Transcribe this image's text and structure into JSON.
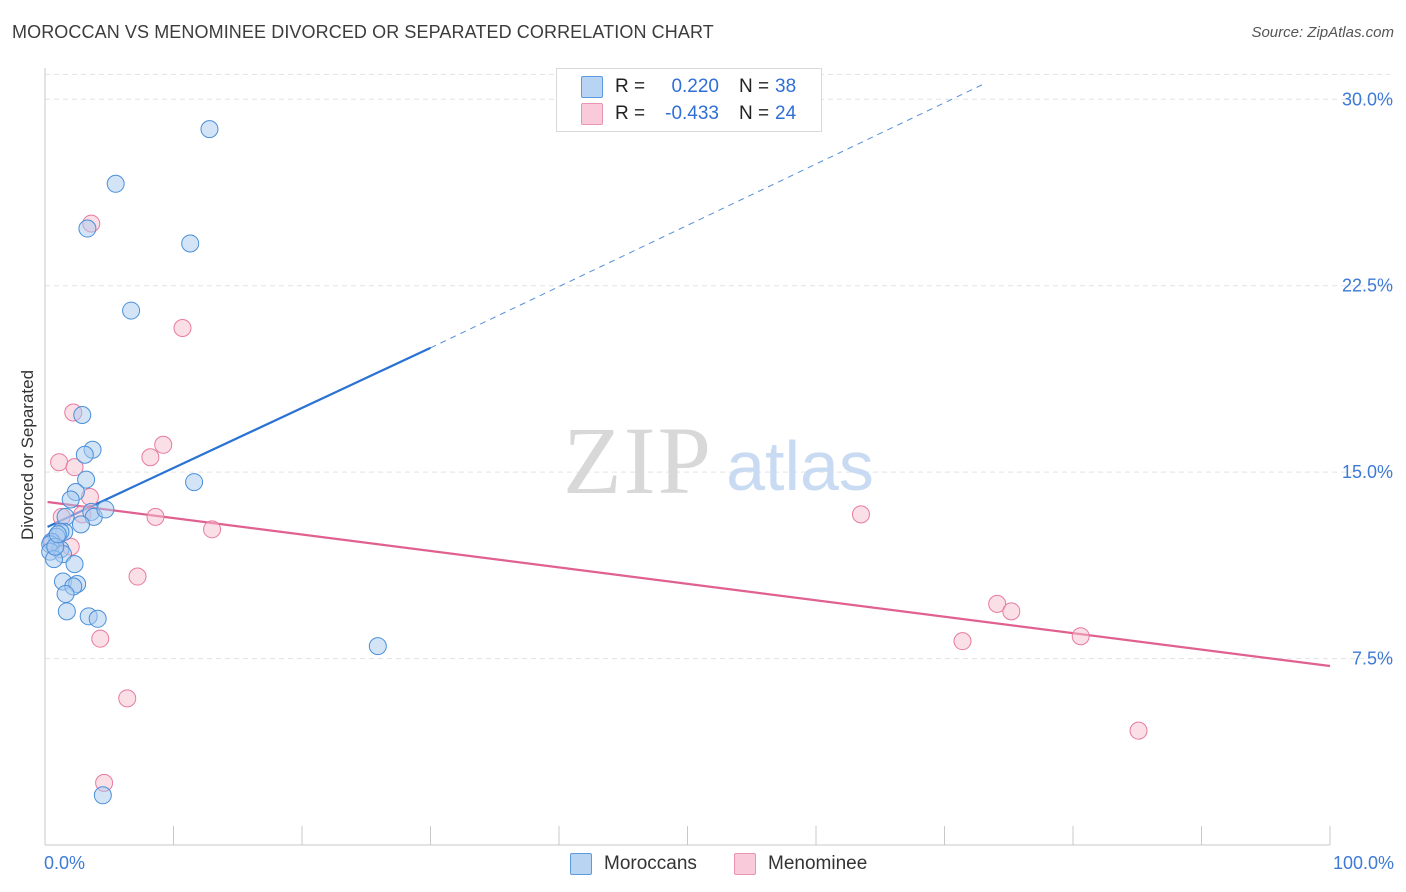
{
  "title": "MOROCCAN VS MENOMINEE DIVORCED OR SEPARATED CORRELATION CHART",
  "source": "Source: ZipAtlas.com",
  "colors": {
    "blue": "#4a90d9",
    "blue_fill": "#a9c9f0",
    "blue_line": "#2a72d4",
    "pink": "#e87aa0",
    "pink_fill": "#f6bfd0",
    "pink_line": "#e0608f",
    "axis_text": "#3d7ad6",
    "grid": "#e3e3e3"
  },
  "legend": {
    "rows": [
      {
        "r_label": "R =",
        "r_value": "0.220",
        "n_label": "N =",
        "n_value": "38"
      },
      {
        "r_label": "R =",
        "r_value": "-0.433",
        "n_label": "N =",
        "n_value": "24"
      }
    ]
  },
  "bottom_legend": {
    "items": [
      "Moroccans",
      "Menominee"
    ]
  },
  "watermark": {
    "zip": "ZIP",
    "atlas": "atlas"
  },
  "chart_data": {
    "type": "scatter",
    "title": "MOROCCAN VS MENOMINEE DIVORCED OR SEPARATED CORRELATION CHART",
    "xlabel": "",
    "ylabel": "Divorced or Separated",
    "xlim": [
      0,
      100
    ],
    "ylim": [
      0,
      31.5
    ],
    "x_tick_labels": [
      "0.0%",
      "100.0%"
    ],
    "y_ticks": [
      7.5,
      15.0,
      22.5,
      30.0
    ],
    "y_tick_labels": [
      "7.5%",
      "15.0%",
      "22.5%",
      "30.0%"
    ],
    "grid": true,
    "legend_position": "top-center",
    "series": [
      {
        "name": "Moroccans",
        "r": 0.22,
        "n": 38,
        "points": [
          [
            12.8,
            28.8
          ],
          [
            5.5,
            26.6
          ],
          [
            3.3,
            24.8
          ],
          [
            11.3,
            24.2
          ],
          [
            6.7,
            21.5
          ],
          [
            2.9,
            17.3
          ],
          [
            3.7,
            15.9
          ],
          [
            3.1,
            15.7
          ],
          [
            11.6,
            14.6
          ],
          [
            3.2,
            14.7
          ],
          [
            2.4,
            14.2
          ],
          [
            2.0,
            13.9
          ],
          [
            3.6,
            13.4
          ],
          [
            3.8,
            13.2
          ],
          [
            1.6,
            13.2
          ],
          [
            4.7,
            13.5
          ],
          [
            2.8,
            12.9
          ],
          [
            1.5,
            12.6
          ],
          [
            1.2,
            12.6
          ],
          [
            0.9,
            12.4
          ],
          [
            0.5,
            12.2
          ],
          [
            0.4,
            12.1
          ],
          [
            1.2,
            11.9
          ],
          [
            0.4,
            11.8
          ],
          [
            1.4,
            11.7
          ],
          [
            0.7,
            11.5
          ],
          [
            2.3,
            11.3
          ],
          [
            1.4,
            10.6
          ],
          [
            2.5,
            10.5
          ],
          [
            2.2,
            10.4
          ],
          [
            1.6,
            10.1
          ],
          [
            1.7,
            9.4
          ],
          [
            3.4,
            9.2
          ],
          [
            4.1,
            9.1
          ],
          [
            25.9,
            8.0
          ],
          [
            4.5,
            2.0
          ],
          [
            0.8,
            12.0
          ],
          [
            1.0,
            12.5
          ]
        ],
        "trend": {
          "x0": 0.2,
          "y0": 12.8,
          "x1": 30,
          "y1": 20.0,
          "x_dash_end": 73,
          "y_dash_end": 30.6
        }
      },
      {
        "name": "Menominee",
        "r": -0.433,
        "n": 24,
        "points": [
          [
            3.6,
            25.0
          ],
          [
            10.7,
            20.8
          ],
          [
            2.2,
            17.4
          ],
          [
            9.2,
            16.1
          ],
          [
            8.2,
            15.6
          ],
          [
            1.1,
            15.4
          ],
          [
            2.3,
            15.2
          ],
          [
            3.5,
            14.0
          ],
          [
            1.3,
            13.2
          ],
          [
            8.6,
            13.2
          ],
          [
            13.0,
            12.7
          ],
          [
            2.9,
            13.3
          ],
          [
            7.2,
            10.8
          ],
          [
            4.3,
            8.3
          ],
          [
            6.4,
            5.9
          ],
          [
            4.6,
            2.5
          ],
          [
            63.5,
            13.3
          ],
          [
            74.1,
            9.7
          ],
          [
            75.2,
            9.4
          ],
          [
            71.4,
            8.2
          ],
          [
            80.6,
            8.4
          ],
          [
            85.1,
            4.6
          ],
          [
            0.6,
            12.2
          ],
          [
            2.0,
            12.0
          ]
        ],
        "trend": {
          "x0": 0.2,
          "y0": 13.8,
          "x1": 100,
          "y1": 7.2
        }
      }
    ]
  }
}
